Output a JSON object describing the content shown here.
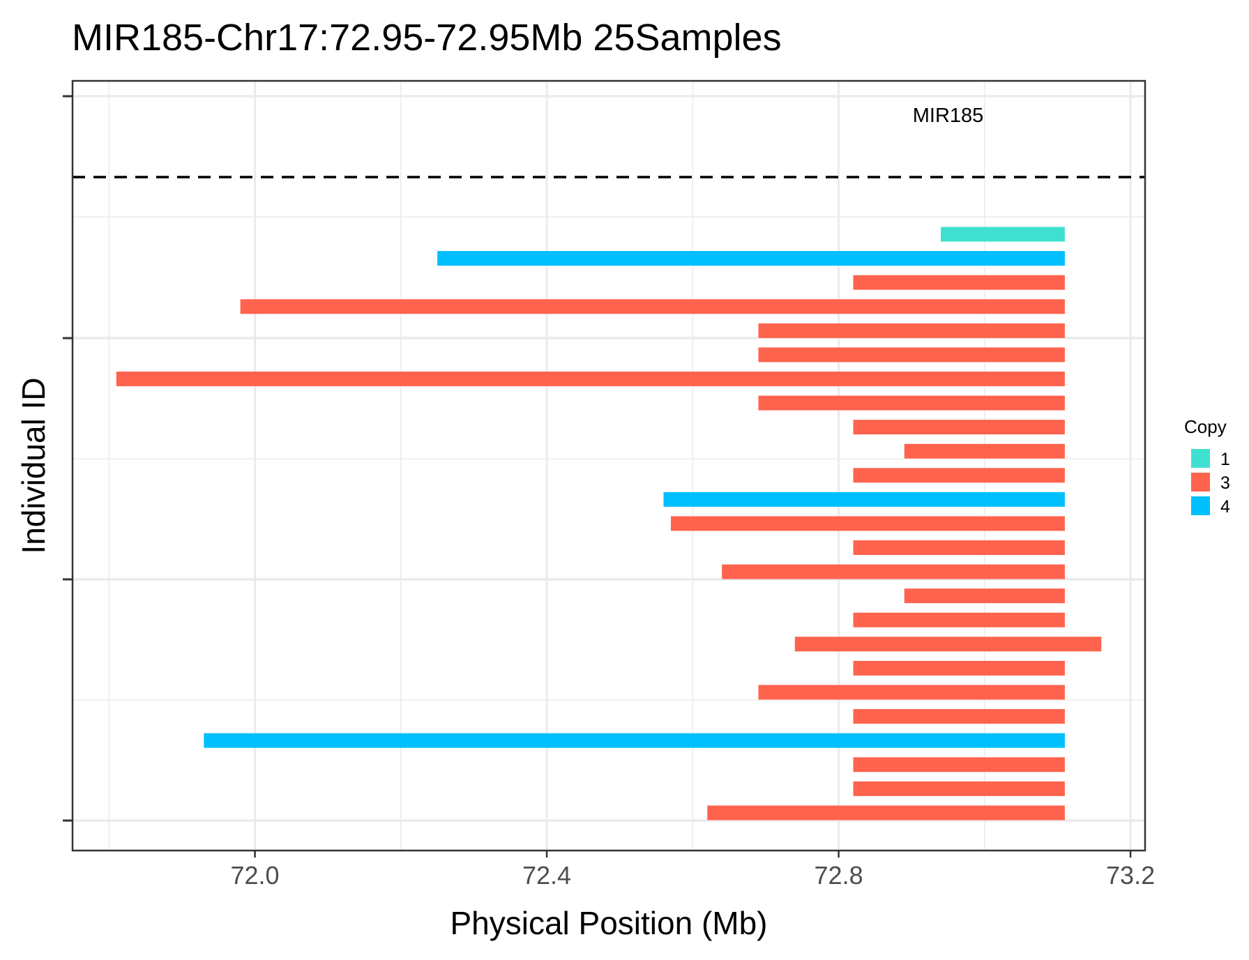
{
  "chart_data": {
    "type": "bar",
    "orientation": "horizontal-segments",
    "title": "MIR185-Chr17:72.95-72.95Mb 25Samples",
    "xlabel": "Physical Position (Mb)",
    "ylabel": "Individual ID",
    "xlim": [
      71.75,
      73.22
    ],
    "x_ticks": [
      72.0,
      72.4,
      72.8,
      73.2
    ],
    "x_tick_labels": [
      "72.0",
      "72.4",
      "72.8",
      "73.2"
    ],
    "grid": true,
    "legend": {
      "title": "Copy",
      "placement": "right",
      "items": [
        {
          "label": "1",
          "color": "#40E0D0"
        },
        {
          "label": "3",
          "color": "#FF634D"
        },
        {
          "label": "4",
          "color": "#00BFFF"
        }
      ]
    },
    "gene_annotation": {
      "label": "MIR185",
      "x": 72.95
    },
    "segments": [
      {
        "start": 72.94,
        "end": 73.11,
        "copy": "1"
      },
      {
        "start": 72.25,
        "end": 73.11,
        "copy": "4"
      },
      {
        "start": 72.82,
        "end": 73.11,
        "copy": "3"
      },
      {
        "start": 71.98,
        "end": 73.11,
        "copy": "3"
      },
      {
        "start": 72.69,
        "end": 73.11,
        "copy": "3"
      },
      {
        "start": 72.69,
        "end": 73.11,
        "copy": "3"
      },
      {
        "start": 71.81,
        "end": 73.11,
        "copy": "3"
      },
      {
        "start": 72.69,
        "end": 73.11,
        "copy": "3"
      },
      {
        "start": 72.82,
        "end": 73.11,
        "copy": "3"
      },
      {
        "start": 72.89,
        "end": 73.11,
        "copy": "3"
      },
      {
        "start": 72.82,
        "end": 73.11,
        "copy": "3"
      },
      {
        "start": 72.56,
        "end": 73.11,
        "copy": "4"
      },
      {
        "start": 72.57,
        "end": 73.11,
        "copy": "3"
      },
      {
        "start": 72.82,
        "end": 73.11,
        "copy": "3"
      },
      {
        "start": 72.64,
        "end": 73.11,
        "copy": "3"
      },
      {
        "start": 72.89,
        "end": 73.11,
        "copy": "3"
      },
      {
        "start": 72.82,
        "end": 73.11,
        "copy": "3"
      },
      {
        "start": 72.74,
        "end": 73.16,
        "copy": "3"
      },
      {
        "start": 72.82,
        "end": 73.11,
        "copy": "3"
      },
      {
        "start": 72.69,
        "end": 73.11,
        "copy": "3"
      },
      {
        "start": 72.82,
        "end": 73.11,
        "copy": "3"
      },
      {
        "start": 71.93,
        "end": 73.11,
        "copy": "4"
      },
      {
        "start": 72.82,
        "end": 73.11,
        "copy": "3"
      },
      {
        "start": 72.82,
        "end": 73.11,
        "copy": "3"
      },
      {
        "start": 72.62,
        "end": 73.11,
        "copy": "3"
      }
    ]
  }
}
